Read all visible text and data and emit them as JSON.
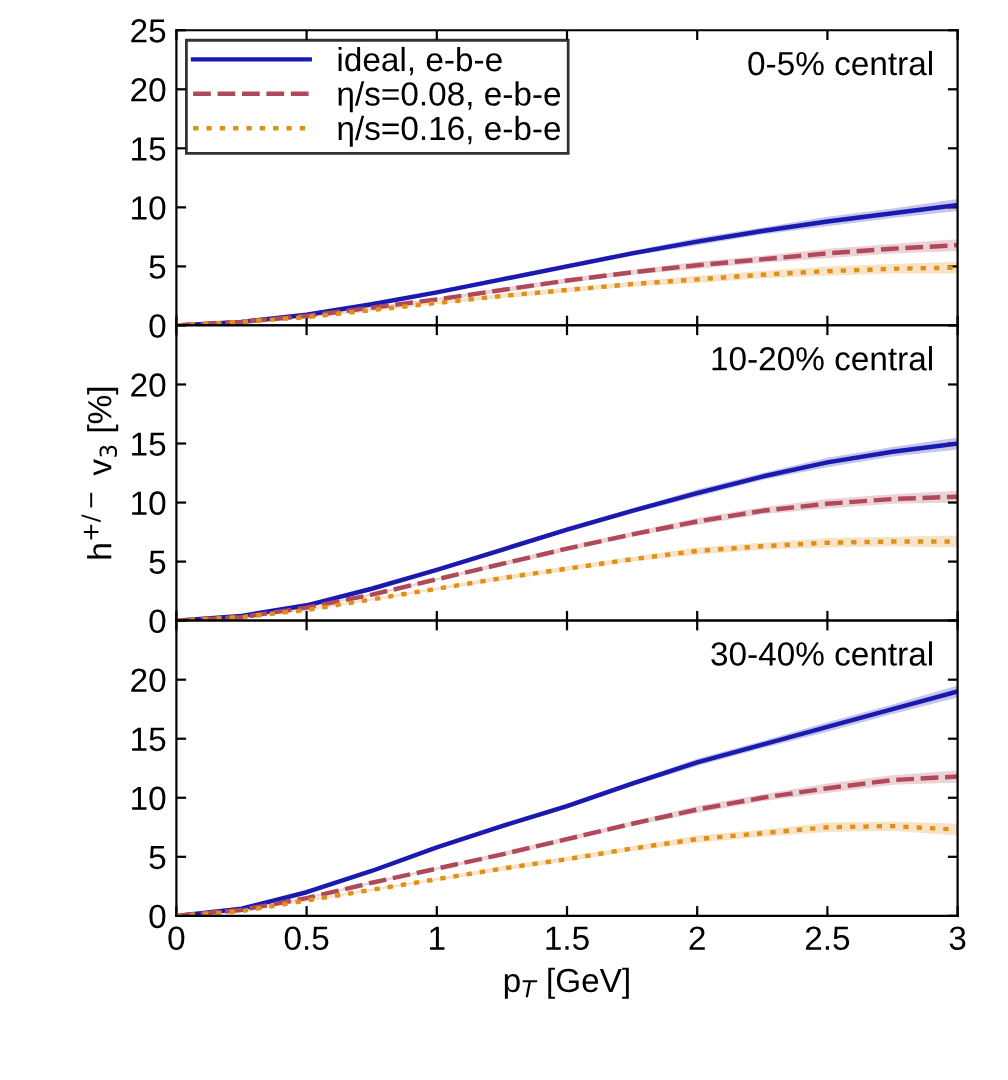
{
  "chart_data": [
    {
      "type": "line",
      "x": [
        0,
        0.25,
        0.5,
        0.75,
        1,
        1.25,
        1.5,
        1.75,
        2,
        2.25,
        2.5,
        2.75,
        3
      ],
      "xlim": [
        0,
        3
      ],
      "xticks": [
        0,
        0.5,
        1,
        1.5,
        2,
        2.5,
        3
      ],
      "ylim": [
        0,
        25
      ],
      "yticks": [
        0,
        5,
        10,
        15,
        20,
        25
      ],
      "tick_labels": "y",
      "legend": "top left",
      "annotations": [
        "0-5% central"
      ],
      "series": [
        {
          "name": "ideal, e-b-e",
          "color": "#1a1ab0",
          "line_style": "solid",
          "values": [
            0,
            0.3,
            0.9,
            1.8,
            2.8,
            3.9,
            5.0,
            6.1,
            7.1,
            8.0,
            8.8,
            9.5,
            10.2
          ],
          "lower": [
            0,
            0.3,
            0.8,
            1.7,
            2.7,
            3.7,
            4.8,
            5.9,
            6.8,
            7.7,
            8.4,
            9.1,
            9.7
          ],
          "upper": [
            0,
            0.3,
            1.0,
            1.9,
            2.9,
            4.1,
            5.2,
            6.3,
            7.4,
            8.3,
            9.2,
            9.9,
            10.7
          ]
        },
        {
          "name": "η/s=0.08, e-b-e",
          "color": "#b04a5a",
          "line_style": "dashed",
          "values": [
            0,
            0.3,
            0.8,
            1.5,
            2.2,
            3.0,
            3.8,
            4.5,
            5.1,
            5.6,
            6.1,
            6.5,
            6.8
          ],
          "lower": [
            0,
            0.3,
            0.7,
            1.4,
            2.1,
            2.8,
            3.6,
            4.3,
            4.8,
            5.3,
            5.7,
            6.1,
            6.3
          ],
          "upper": [
            0,
            0.3,
            0.9,
            1.6,
            2.3,
            3.2,
            4.0,
            4.7,
            5.4,
            5.9,
            6.5,
            6.9,
            7.3
          ]
        },
        {
          "name": "η/s=0.16, e-b-e",
          "color": "#e0901a",
          "line_style": "dotted",
          "values": [
            0,
            0.3,
            0.7,
            1.3,
            1.9,
            2.5,
            3.0,
            3.5,
            3.9,
            4.3,
            4.6,
            4.8,
            4.9
          ],
          "lower": [
            0,
            0.3,
            0.6,
            1.2,
            1.8,
            2.3,
            2.8,
            3.3,
            3.6,
            4.0,
            4.2,
            4.4,
            4.4
          ],
          "upper": [
            0,
            0.3,
            0.8,
            1.4,
            2.0,
            2.7,
            3.2,
            3.7,
            4.2,
            4.6,
            5.0,
            5.2,
            5.4
          ]
        }
      ]
    },
    {
      "type": "line",
      "x": [
        0,
        0.25,
        0.5,
        0.75,
        1,
        1.25,
        1.5,
        1.75,
        2,
        2.25,
        2.5,
        2.75,
        3
      ],
      "xlim": [
        0,
        3
      ],
      "xticks": [
        0,
        0.5,
        1,
        1.5,
        2,
        2.5,
        3
      ],
      "ylim": [
        0,
        25
      ],
      "yticks": [
        0,
        5,
        10,
        15,
        20,
        {
          "value": 25,
          "label": null
        }
      ],
      "tick_labels": "y",
      "ylabel": "h$^{+/−}$ v$_{3}$ [%]",
      "annotations": [
        "10-20% central"
      ],
      "series": [
        {
          "color": "#1a1ab0",
          "line_style": "solid",
          "values": [
            0,
            0.4,
            1.3,
            2.7,
            4.3,
            6.0,
            7.7,
            9.3,
            10.8,
            12.2,
            13.4,
            14.3,
            15.0
          ],
          "lower": [
            0,
            0.4,
            1.2,
            2.6,
            4.2,
            5.8,
            7.5,
            9.1,
            10.5,
            11.9,
            13.0,
            13.9,
            14.5
          ],
          "upper": [
            0,
            0.4,
            1.4,
            2.8,
            4.4,
            6.2,
            7.9,
            9.5,
            11.1,
            12.5,
            13.8,
            14.7,
            15.5
          ]
        },
        {
          "color": "#b04a5a",
          "line_style": "dashed",
          "values": [
            0,
            0.3,
            1.1,
            2.2,
            3.5,
            4.8,
            6.1,
            7.3,
            8.4,
            9.3,
            9.9,
            10.3,
            10.5
          ],
          "lower": [
            0,
            0.3,
            1.0,
            2.1,
            3.4,
            4.6,
            5.9,
            7.1,
            8.1,
            9.0,
            9.5,
            9.9,
            10.0
          ],
          "upper": [
            0,
            0.3,
            1.2,
            2.3,
            3.6,
            5.0,
            6.3,
            7.5,
            8.7,
            9.6,
            10.3,
            10.7,
            11.0
          ]
        },
        {
          "color": "#e0901a",
          "line_style": "dotted",
          "values": [
            0,
            0.3,
            0.9,
            1.8,
            2.7,
            3.6,
            4.4,
            5.2,
            5.9,
            6.3,
            6.6,
            6.7,
            6.7
          ],
          "lower": [
            0,
            0.3,
            0.8,
            1.7,
            2.6,
            3.4,
            4.2,
            5.0,
            5.6,
            6.0,
            6.2,
            6.3,
            6.2
          ],
          "upper": [
            0,
            0.3,
            1.0,
            1.9,
            2.8,
            3.8,
            4.6,
            5.4,
            6.2,
            6.6,
            7.0,
            7.1,
            7.2
          ]
        }
      ]
    },
    {
      "type": "line",
      "x": [
        0,
        0.25,
        0.5,
        0.75,
        1,
        1.25,
        1.5,
        1.75,
        2,
        2.25,
        2.5,
        2.75,
        3
      ],
      "xlim": [
        0,
        3
      ],
      "xticks": [
        0,
        0.5,
        1,
        1.5,
        2,
        2.5,
        3
      ],
      "ylim": [
        0,
        25
      ],
      "yticks": [
        0,
        5,
        10,
        15,
        20,
        {
          "value": 25,
          "label": null
        }
      ],
      "xlabel": "p$_{T}$ [GeV]",
      "annotations": [
        "30-40% central"
      ],
      "series": [
        {
          "color": "#1a1ab0",
          "line_style": "solid",
          "values": [
            0,
            0.6,
            2.0,
            3.8,
            5.8,
            7.6,
            9.3,
            11.2,
            13.0,
            14.5,
            16.0,
            17.5,
            19.0
          ],
          "lower": [
            0,
            0.6,
            1.9,
            3.7,
            5.7,
            7.4,
            9.1,
            11.0,
            12.7,
            14.2,
            15.6,
            17.1,
            18.5
          ],
          "upper": [
            0,
            0.6,
            2.1,
            3.9,
            5.9,
            7.8,
            9.5,
            11.4,
            13.3,
            14.8,
            16.4,
            17.9,
            19.5
          ]
        },
        {
          "color": "#b04a5a",
          "line_style": "dashed",
          "values": [
            0,
            0.5,
            1.5,
            2.8,
            4.0,
            5.2,
            6.5,
            7.8,
            9.0,
            10.0,
            10.8,
            11.5,
            11.8
          ],
          "lower": [
            0,
            0.5,
            1.4,
            2.7,
            3.9,
            5.0,
            6.3,
            7.6,
            8.7,
            9.7,
            10.4,
            11.1,
            11.3
          ],
          "upper": [
            0,
            0.5,
            1.6,
            2.9,
            4.1,
            5.4,
            6.7,
            8.0,
            9.3,
            10.3,
            11.2,
            11.9,
            12.3
          ]
        },
        {
          "color": "#e0901a",
          "line_style": "dotted",
          "values": [
            0,
            0.4,
            1.3,
            2.2,
            3.1,
            4.0,
            4.8,
            5.7,
            6.5,
            7.0,
            7.5,
            7.6,
            7.3
          ],
          "lower": [
            0,
            0.4,
            1.2,
            2.1,
            3.0,
            3.8,
            4.6,
            5.5,
            6.2,
            6.7,
            7.1,
            7.2,
            6.8
          ],
          "upper": [
            0,
            0.4,
            1.4,
            2.3,
            3.2,
            4.2,
            5.0,
            5.9,
            6.8,
            7.3,
            7.9,
            8.0,
            7.8
          ]
        }
      ]
    }
  ]
}
